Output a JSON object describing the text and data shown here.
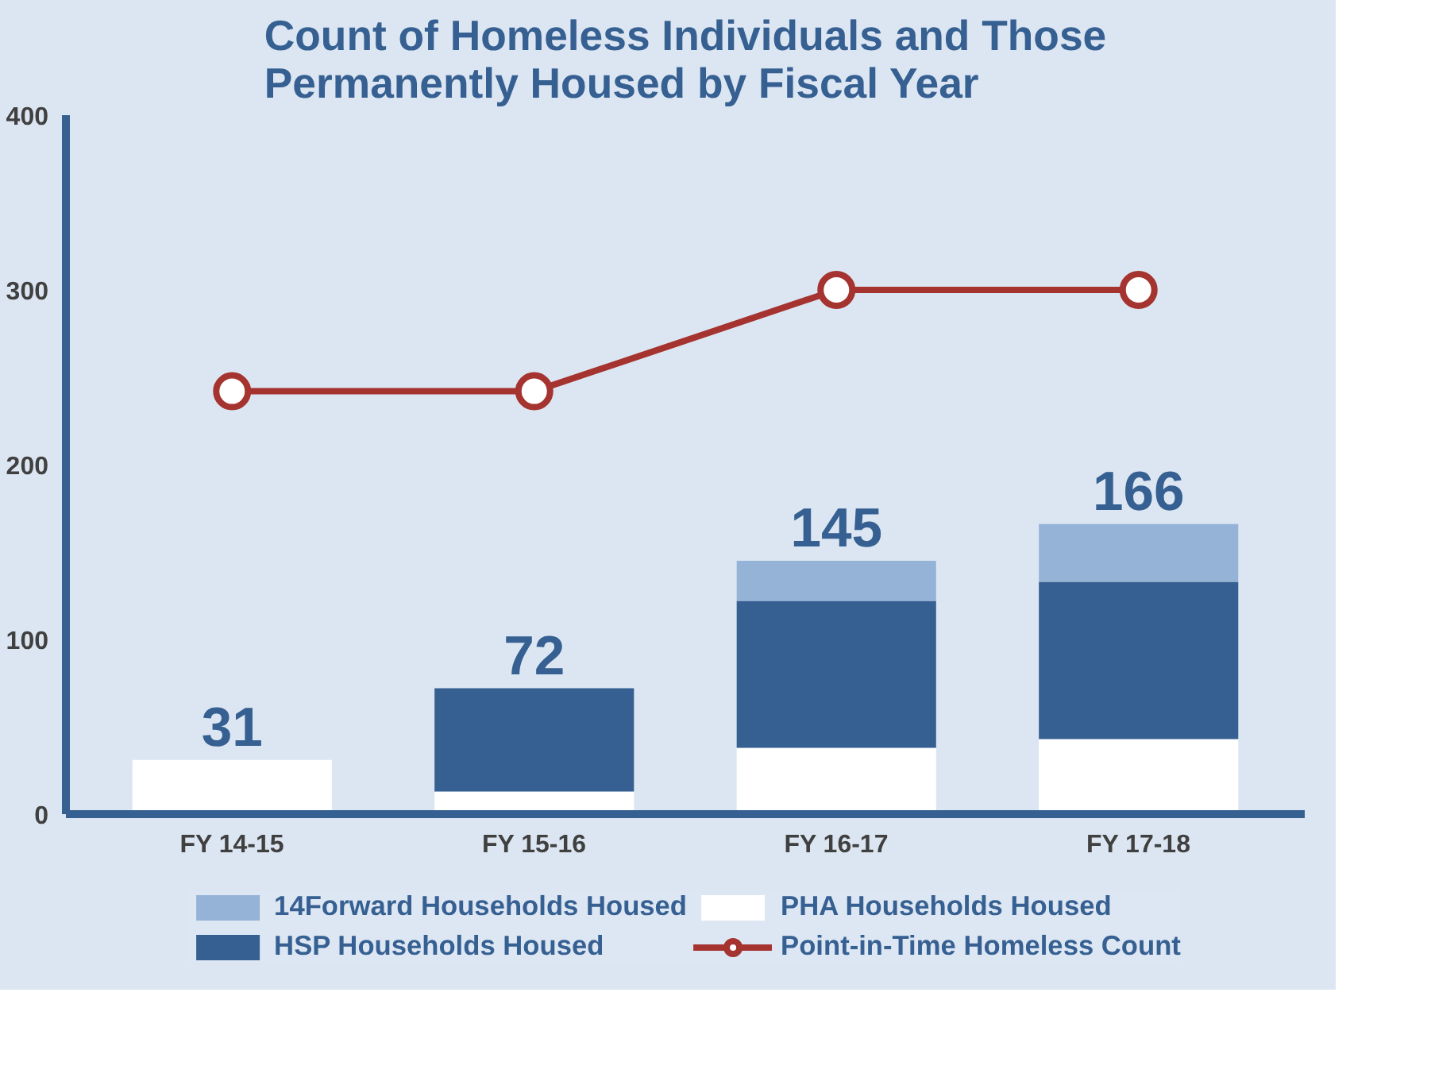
{
  "chart_data": {
    "type": "bar",
    "title": "Count of Homeless Individuals and Those Permanently Housed by Fiscal Year",
    "categories": [
      "FY 14-15",
      "FY 15-16",
      "FY 16-17",
      "FY 17-18"
    ],
    "stacked": true,
    "ylim": [
      0,
      400
    ],
    "yticks": [
      0,
      100,
      200,
      300,
      400
    ],
    "grid": false,
    "legend": "bottom",
    "totals": [
      "31",
      "72",
      "145",
      "166"
    ],
    "series": [
      {
        "name": "PHA Households Housed",
        "color": "#ffffff",
        "values": [
          31,
          13,
          38,
          43
        ]
      },
      {
        "name": "HSP Households Housed",
        "color": "#366092",
        "values": [
          null,
          59,
          84,
          90
        ]
      },
      {
        "name": "14Forward Households Housed",
        "color": "#95b3d7",
        "values": [
          null,
          null,
          23,
          33
        ]
      },
      {
        "name": "Point-in-Time Homeless Count",
        "type": "line",
        "color": "#a5332f",
        "marker": "circle",
        "values": [
          242,
          242,
          300,
          300
        ]
      }
    ]
  }
}
